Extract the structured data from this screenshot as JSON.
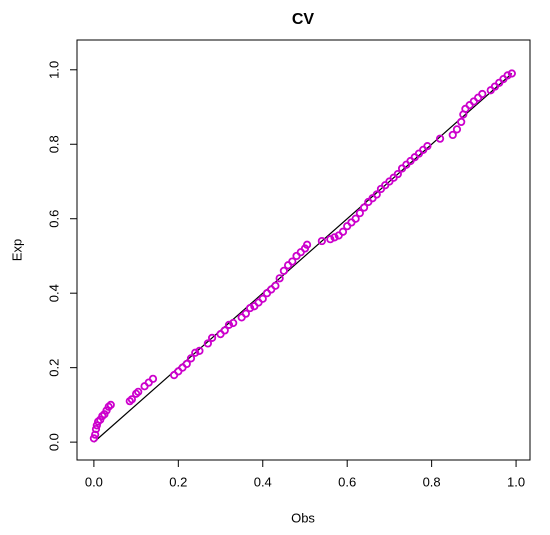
{
  "chart_data": {
    "type": "scatter",
    "title": "CV",
    "x_label": "Obs",
    "y_label": "Exp",
    "series": [
      {
        "color": "#cc00cc",
        "x": [
          0,
          0.003,
          0.005,
          0.007,
          0.01,
          0.015,
          0.02,
          0.025,
          0.03,
          0.035,
          0.04,
          0.085,
          0.09,
          0.1,
          0.105,
          0.12,
          0.13,
          0.14,
          0.19,
          0.2,
          0.21,
          0.22,
          0.23,
          0.24,
          0.25,
          0.27,
          0.28,
          0.3,
          0.31,
          0.32,
          0.33,
          0.35,
          0.36,
          0.37,
          0.38,
          0.39,
          0.4,
          0.41,
          0.42,
          0.43,
          0.44,
          0.45,
          0.46,
          0.47,
          0.48,
          0.49,
          0.5,
          0.505,
          0.54,
          0.56,
          0.57,
          0.58,
          0.59,
          0.6,
          0.61,
          0.62,
          0.63,
          0.64,
          0.65,
          0.66,
          0.67,
          0.68,
          0.69,
          0.7,
          0.71,
          0.72,
          0.73,
          0.74,
          0.75,
          0.76,
          0.77,
          0.78,
          0.79,
          0.82,
          0.85,
          0.86,
          0.87,
          0.875,
          0.88,
          0.89,
          0.9,
          0.91,
          0.92,
          0.94,
          0.95,
          0.96,
          0.97,
          0.98,
          0.99
        ],
        "values": [
          0.01,
          0.02,
          0.035,
          0.045,
          0.055,
          0.06,
          0.07,
          0.075,
          0.085,
          0.095,
          0.1,
          0.11,
          0.115,
          0.13,
          0.135,
          0.15,
          0.16,
          0.17,
          0.18,
          0.19,
          0.2,
          0.21,
          0.225,
          0.24,
          0.245,
          0.265,
          0.28,
          0.29,
          0.3,
          0.315,
          0.32,
          0.335,
          0.345,
          0.36,
          0.365,
          0.375,
          0.385,
          0.4,
          0.41,
          0.42,
          0.44,
          0.46,
          0.475,
          0.485,
          0.5,
          0.51,
          0.52,
          0.53,
          0.54,
          0.545,
          0.55,
          0.555,
          0.565,
          0.58,
          0.59,
          0.6,
          0.615,
          0.63,
          0.645,
          0.655,
          0.665,
          0.68,
          0.69,
          0.7,
          0.71,
          0.72,
          0.735,
          0.745,
          0.755,
          0.765,
          0.775,
          0.785,
          0.795,
          0.815,
          0.825,
          0.84,
          0.86,
          0.88,
          0.895,
          0.905,
          0.915,
          0.925,
          0.935,
          0.945,
          0.955,
          0.965,
          0.975,
          0.985,
          0.99
        ]
      }
    ],
    "reference_line": {
      "color": "#000000",
      "x": [
        0,
        0.99
      ],
      "values": [
        0,
        0.99
      ]
    },
    "xlim": [
      -0.04,
      1.033
    ],
    "ylim": [
      -0.048,
      1.08
    ],
    "xticks": [
      {
        "value": 0,
        "label": "0.0"
      },
      {
        "value": 0.2,
        "label": "0.2"
      },
      {
        "value": 0.4,
        "label": "0.4"
      },
      {
        "value": 0.6,
        "label": "0.6"
      },
      {
        "value": 0.8,
        "label": "0.8"
      },
      {
        "value": 1,
        "label": "1.0"
      }
    ],
    "yticks": [
      {
        "value": 0,
        "label": "0.0"
      },
      {
        "value": 0.2,
        "label": "0.2"
      },
      {
        "value": 0.4,
        "label": "0.4"
      },
      {
        "value": 0.6,
        "label": "0.6"
      },
      {
        "value": 0.8,
        "label": "0.8"
      },
      {
        "value": 1,
        "label": "1.0"
      }
    ]
  }
}
